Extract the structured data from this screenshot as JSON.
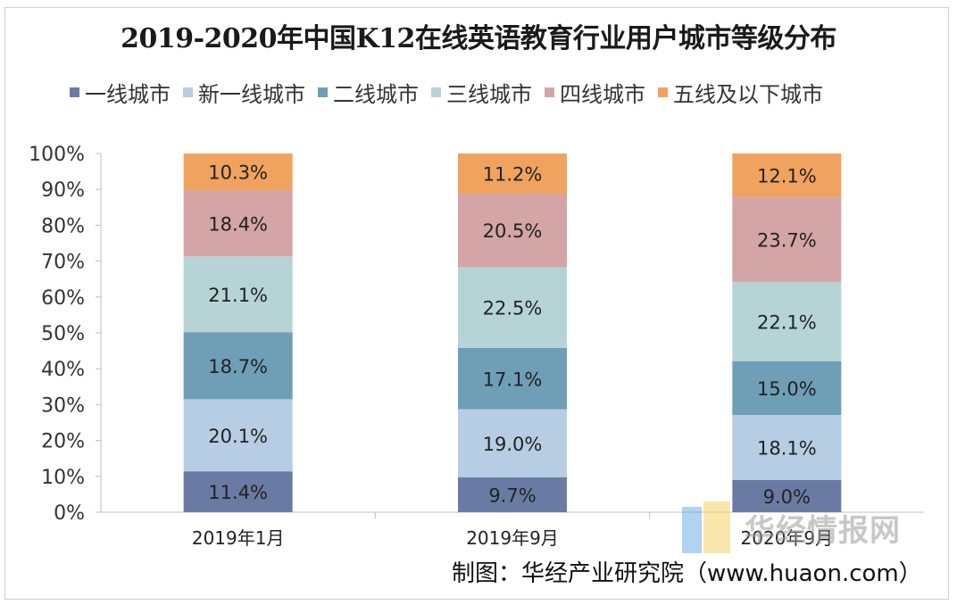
{
  "chart_data": {
    "type": "bar",
    "stacked": true,
    "title": "2019-2020年中国K12在线英语教育行业用户城市等级分布",
    "categories": [
      "2019年1月",
      "2019年9月",
      "2020年9月"
    ],
    "y_ticks": [
      "0%",
      "10%",
      "20%",
      "30%",
      "40%",
      "50%",
      "60%",
      "70%",
      "80%",
      "90%",
      "100%"
    ],
    "ylim": [
      0,
      100
    ],
    "legend_position": "top",
    "series": [
      {
        "name": "一线城市",
        "color": "#6a7ba3",
        "values": [
          11.4,
          9.7,
          9.0
        ],
        "labels": [
          "11.4%",
          "9.7%",
          "9.0%"
        ]
      },
      {
        "name": "新一线城市",
        "color": "#b7cde3",
        "values": [
          20.1,
          19.0,
          18.1
        ],
        "labels": [
          "20.1%",
          "19.0%",
          "18.1%"
        ]
      },
      {
        "name": "二线城市",
        "color": "#6e9fb6",
        "values": [
          18.7,
          17.1,
          15.0
        ],
        "labels": [
          "18.7%",
          "17.1%",
          "15.0%"
        ]
      },
      {
        "name": "三线城市",
        "color": "#b6d4d6",
        "values": [
          21.1,
          22.5,
          22.1
        ],
        "labels": [
          "21.1%",
          "22.5%",
          "22.1%"
        ]
      },
      {
        "name": "四线城市",
        "color": "#d4a5a6",
        "values": [
          18.4,
          20.5,
          23.7
        ],
        "labels": [
          "18.4%",
          "20.5%",
          "23.7%"
        ]
      },
      {
        "name": "五线及以下城市",
        "color": "#f0a35e",
        "values": [
          10.3,
          11.2,
          12.1
        ],
        "labels": [
          "10.3%",
          "11.2%",
          "12.1%"
        ]
      }
    ]
  },
  "watermark": {
    "text": "华经情报网"
  },
  "source": "制图：华经产业研究院（www.huaon.com）"
}
